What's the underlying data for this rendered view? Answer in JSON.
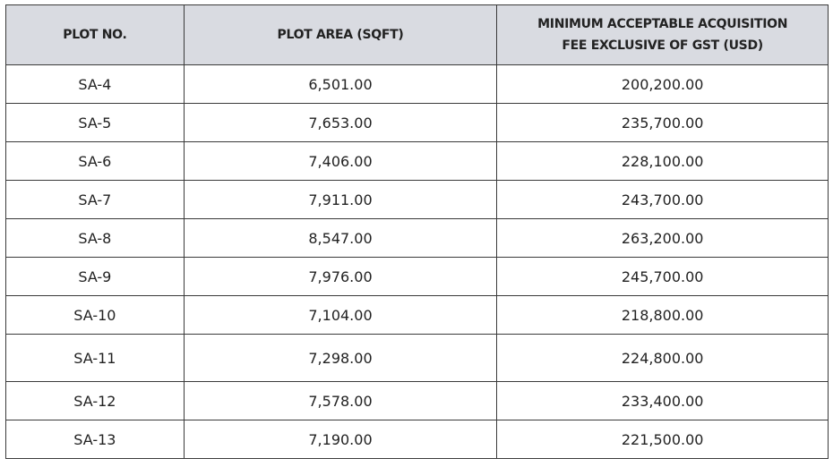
{
  "table": {
    "headers": [
      "PLOT NO.",
      "PLOT AREA (SQFT)",
      "MINIMUM ACCEPTABLE ACQUISITION FEE EXCLUSIVE OF GST (USD)"
    ],
    "header_bg": "#d9dbe1",
    "rows": [
      [
        "SA-4",
        "6,501.00",
        "200,200.00"
      ],
      [
        "SA-5",
        "7,653.00",
        "235,700.00"
      ],
      [
        "SA-6",
        "7,406.00",
        "228,100.00"
      ],
      [
        "SA-7",
        "7,911.00",
        "243,700.00"
      ],
      [
        "SA-8",
        "8,547.00",
        "263,200.00"
      ],
      [
        "SA-9",
        "7,976.00",
        "245,700.00"
      ],
      [
        "SA-10",
        "7,104.00",
        "218,800.00"
      ],
      [
        "SA-11",
        "7,298.00",
        "224,800.00"
      ],
      [
        "SA-12",
        "7,578.00",
        "233,400.00"
      ],
      [
        "SA-13",
        "7,190.00",
        "221,500.00"
      ]
    ]
  }
}
